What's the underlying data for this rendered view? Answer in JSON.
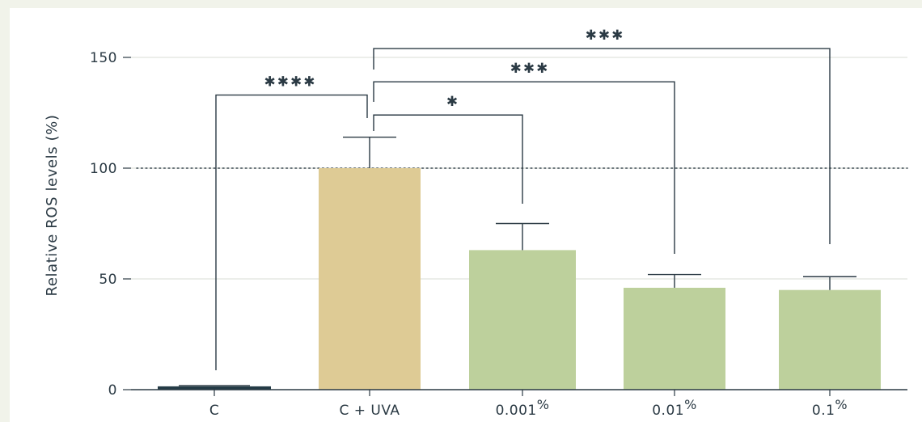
{
  "chart_data": {
    "type": "bar",
    "categories": [
      "C",
      "C + UVA",
      "0.001",
      "0.01",
      "0.1"
    ],
    "category_suffix": [
      "",
      "",
      "%",
      "%",
      "%"
    ],
    "values": [
      1.5,
      100,
      63,
      46,
      45
    ],
    "errors": [
      0,
      14,
      12,
      6,
      6
    ],
    "bar_colors": [
      "#243b46",
      "#decb95",
      "#bdd09c",
      "#bdd09c",
      "#bdd09c"
    ],
    "xlabel": "",
    "ylabel": "Relative ROS levels (%)",
    "ylim": [
      0,
      155
    ],
    "yticks": [
      0,
      50,
      100,
      150
    ],
    "ytick_labels": [
      "0",
      "50",
      "100",
      "150"
    ],
    "grid": true,
    "reference_line": {
      "y": 100,
      "style": "dotted"
    },
    "significance": [
      {
        "from": 1,
        "to": 0,
        "label": "✱✱✱✱",
        "top": 133
      },
      {
        "from": 1,
        "to": 2,
        "label": "✱",
        "top": 124
      },
      {
        "from": 1,
        "to": 3,
        "label": "✱✱✱",
        "top": 139
      },
      {
        "from": 1,
        "to": 4,
        "label": "✱✱✱",
        "top": 154
      }
    ]
  }
}
